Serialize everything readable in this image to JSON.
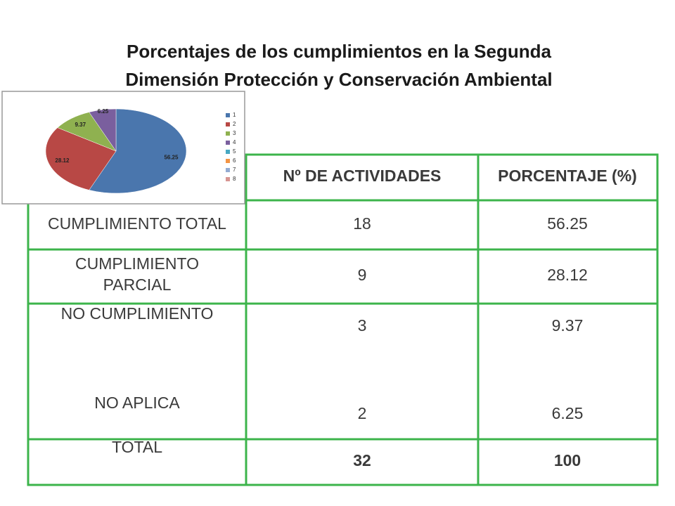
{
  "title": "Porcentajes de los cumplimientos en la Segunda Dimensión Protección y Conservación Ambiental",
  "chart_data": {
    "type": "pie",
    "categories": [
      "1",
      "2",
      "3",
      "4",
      "5",
      "6",
      "7",
      "8"
    ],
    "values": [
      56.25,
      28.12,
      9.37,
      6.25,
      null,
      null,
      null,
      null
    ],
    "colors": [
      "#4a76ad",
      "#b84845",
      "#8fb150",
      "#7a5f9e",
      "#47a8c2",
      "#f39444",
      "#93abd2",
      "#d79592"
    ]
  },
  "table": {
    "header": [
      "Nº DE ACTIVIDADES",
      "PORCENTAJE (%)"
    ],
    "rows": [
      [
        "CUMPLIMIENTO TOTAL",
        18,
        56.25
      ],
      [
        "CUMPLIMIENTO PARCIAL",
        9,
        28.12
      ],
      [
        "NO CUMPLIMIENTO",
        3,
        9.37
      ],
      [
        "NO APLICA",
        2,
        6.25
      ],
      [
        "TOTAL",
        32,
        100
      ]
    ]
  }
}
